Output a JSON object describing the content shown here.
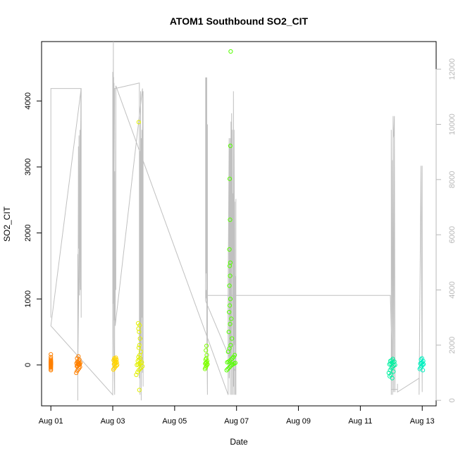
{
  "chart_data": {
    "type": "scatter",
    "title": "ATOM1 Southbound SO2_CIT",
    "xlabel": "Date",
    "ylabel": "SO2_CIT",
    "x_ticks": [
      "Aug 01",
      "Aug 03",
      "Aug 05",
      "Aug 07",
      "Aug 09",
      "Aug 11",
      "Aug 13"
    ],
    "x_tick_days": [
      1,
      3,
      5,
      7,
      9,
      11,
      13
    ],
    "xlim": [
      0.7,
      13.45
    ],
    "y_ticks": [
      0,
      1000,
      2000,
      3000,
      4000
    ],
    "ylim": [
      -620,
      4900
    ],
    "y2_ticks": [
      0,
      2000,
      4000,
      6000,
      8000,
      10000,
      12000
    ],
    "y2lim": [
      -200,
      13000
    ],
    "colors": {
      "axis": "#000000",
      "secondary_axis": "#b8b8b8",
      "gray_series": "#c0c0c0"
    },
    "point_series": [
      {
        "color": "#ff8000",
        "x": [
          1.0,
          1.0,
          1.0,
          1.0,
          1.0,
          1.0,
          1.0,
          1.0,
          1.0,
          1.0,
          1.0,
          1.0,
          1.0,
          1.0,
          1.0,
          1.0,
          1.0,
          1.0,
          1.0,
          1.0,
          1.0,
          1.0
        ],
        "y": [
          -80,
          -60,
          -40,
          -30,
          -20,
          -10,
          0,
          5,
          10,
          15,
          20,
          25,
          30,
          35,
          40,
          45,
          50,
          60,
          70,
          90,
          120,
          160
        ]
      },
      {
        "color": "#ff8000",
        "x": [
          1.82,
          1.85,
          1.88,
          1.91,
          1.94,
          1.84,
          1.86,
          1.9,
          1.93,
          1.87,
          1.89,
          1.92,
          1.83,
          1.95,
          1.88,
          1.86,
          1.9,
          1.92,
          1.85,
          1.89
        ],
        "y": [
          -120,
          -90,
          -70,
          -50,
          -30,
          -20,
          -10,
          0,
          5,
          10,
          15,
          20,
          25,
          30,
          40,
          50,
          60,
          80,
          100,
          130
        ]
      },
      {
        "color": "#ffd400",
        "x": [
          3.02,
          3.05,
          3.08,
          3.11,
          3.14,
          3.04,
          3.07,
          3.1,
          3.13,
          3.06,
          3.09,
          3.03,
          3.12,
          3.08,
          3.05,
          3.1
        ],
        "y": [
          -70,
          -50,
          -30,
          -15,
          0,
          10,
          20,
          30,
          40,
          50,
          60,
          70,
          80,
          90,
          100,
          110
        ]
      },
      {
        "color": "#e2f000",
        "x": [
          3.76,
          3.8,
          3.84,
          3.88,
          3.92,
          3.96,
          3.78,
          3.82,
          3.86,
          3.9,
          3.94,
          3.81,
          3.85,
          3.89,
          3.83,
          3.87,
          3.91,
          3.84,
          3.86,
          3.88,
          3.85,
          3.83,
          3.87,
          3.82,
          3.86,
          3.84
        ],
        "y": [
          -150,
          -110,
          -80,
          -60,
          -40,
          -20,
          0,
          10,
          20,
          30,
          40,
          60,
          80,
          100,
          120,
          150,
          200,
          260,
          300,
          400,
          500,
          550,
          600,
          630,
          -380,
          3680
        ]
      },
      {
        "color": "#7fff00",
        "x": [
          5.98,
          6.0,
          6.02,
          6.04,
          6.06,
          5.99,
          6.01,
          6.03,
          6.05,
          6.0,
          6.02,
          6.04,
          6.01,
          6.03
        ],
        "y": [
          -60,
          -40,
          -20,
          0,
          10,
          20,
          30,
          40,
          60,
          80,
          100,
          150,
          220,
          290
        ]
      },
      {
        "color": "#55ff00",
        "x": [
          6.68,
          6.72,
          6.76,
          6.8,
          6.84,
          6.88,
          6.92,
          6.96,
          6.7,
          6.74,
          6.78,
          6.82,
          6.86,
          6.9,
          6.94,
          6.73,
          6.77,
          6.81,
          6.85,
          6.75,
          6.79,
          6.83,
          6.76,
          6.78,
          6.8,
          6.77,
          6.79,
          6.78,
          6.8,
          6.77,
          6.79,
          6.78,
          6.8,
          6.81
        ],
        "y": [
          -80,
          -60,
          -40,
          -20,
          0,
          10,
          20,
          30,
          40,
          50,
          60,
          80,
          100,
          120,
          150,
          200,
          250,
          300,
          400,
          500,
          620,
          700,
          800,
          900,
          1000,
          1200,
          1350,
          1500,
          1550,
          1750,
          2200,
          2820,
          3320,
          4750
        ]
      },
      {
        "color": "#00f0a0",
        "x": [
          11.92,
          11.96,
          12.0,
          12.04,
          12.08,
          12.12,
          11.94,
          11.98,
          12.02,
          12.06,
          12.1,
          11.97,
          12.01,
          12.05,
          11.99,
          12.03,
          11.95,
          12.07
        ],
        "y": [
          -120,
          -80,
          -50,
          -30,
          -10,
          0,
          10,
          20,
          30,
          40,
          50,
          60,
          70,
          90,
          -150,
          -200,
          -170,
          -100
        ]
      },
      {
        "color": "#00f0c0",
        "x": [
          12.92,
          12.95,
          12.98,
          13.01,
          13.04,
          12.94,
          12.97,
          13.0,
          13.03,
          12.96,
          12.99,
          13.02
        ],
        "y": [
          -60,
          -40,
          -20,
          0,
          10,
          20,
          30,
          40,
          60,
          80,
          100,
          -80
        ]
      }
    ],
    "gray_series": {
      "name": "",
      "axis": "right",
      "x": [
        1.0,
        1.0,
        1.0,
        1.0,
        1.98,
        1.87,
        1.87,
        1.87,
        1.88,
        1.89,
        1.9,
        1.91,
        1.92,
        1.93,
        1.94,
        1.95,
        1.96,
        1.97,
        1.98,
        1.98,
        1.0,
        3.0,
        3.0,
        3.0,
        3.02,
        3.02,
        3.04,
        3.04,
        3.06,
        3.06,
        3.06,
        3.03,
        3.03,
        3.0,
        3.02,
        3.04,
        3.04,
        3.06,
        3.08,
        3.86,
        3.86,
        3.88,
        3.88,
        3.9,
        3.9,
        3.92,
        3.92,
        3.94,
        3.94,
        3.96,
        3.96,
        3.98,
        3.98,
        3.96,
        3.08,
        3.1,
        3.1,
        3.1,
        6.73,
        6.73,
        6.76,
        6.76,
        6.78,
        6.78,
        6.8,
        6.8,
        6.82,
        6.82,
        6.84,
        6.84,
        6.86,
        6.86,
        6.88,
        6.88,
        6.9,
        6.9,
        6.92,
        6.92,
        6.94,
        6.94,
        6.96,
        6.96,
        6.98,
        6.98,
        6.98,
        6.0,
        6.0,
        6.0,
        6.02,
        6.02,
        6.04,
        6.04,
        6.06,
        6.06,
        6.06,
        6.02,
        6.02,
        6.0,
        6.0,
        6.06,
        11.97,
        12.04,
        12.04,
        12.06,
        12.06,
        12.08,
        12.08,
        12.1,
        12.1,
        12.12,
        12.12,
        12.1,
        12.08,
        12.06,
        12.04,
        12.0,
        12.0,
        12.0,
        12.2,
        12.2,
        12.2,
        12.9,
        12.9,
        12.96,
        12.96,
        13.0,
        13.0,
        13.0
      ],
      "y": [
        6200,
        11300,
        3000,
        11300,
        11300,
        1200,
        0,
        5300,
        3100,
        9200,
        5500,
        9600,
        6800,
        3800,
        9800,
        7200,
        4000,
        11300,
        3000,
        11300,
        2700,
        200,
        11900,
        3500,
        13000,
        8000,
        11300,
        2900,
        8300,
        2000,
        200,
        2300,
        11700,
        11700,
        3500,
        11500,
        7500,
        11300,
        11300,
        11500,
        800,
        9000,
        200,
        11200,
        2000,
        9500,
        0,
        9800,
        3000,
        9900,
        1000,
        11200,
        500,
        11300,
        2700,
        11400,
        4000,
        11400,
        200,
        4000,
        9500,
        800,
        2000,
        9300,
        200,
        9500,
        1500,
        10100,
        200,
        10400,
        5000,
        9800,
        200,
        7500,
        500,
        11200,
        200,
        9800,
        2000,
        7200,
        200,
        4500,
        200,
        7300,
        1000,
        3600,
        11700,
        3800,
        11700,
        4600,
        11700,
        2500,
        200,
        10000,
        3800,
        3700,
        4000,
        3600,
        3800,
        3800,
        3800,
        800,
        8700,
        8600,
        9500,
        9600,
        9600,
        10300,
        10100,
        700,
        300,
        9800,
        300,
        10300,
        200,
        9800,
        200,
        400,
        400,
        600,
        300,
        800,
        200,
        8500,
        8500,
        300,
        8500,
        8500
      ]
    }
  }
}
